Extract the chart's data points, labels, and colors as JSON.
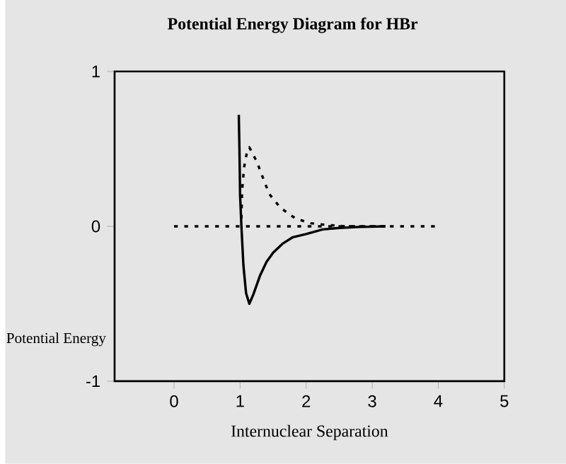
{
  "chart_data": {
    "type": "line",
    "title": "Potential Energy Diagram for HBr",
    "xlabel": "Internuclear Separation",
    "ylabel": "Potential Energy",
    "xlim": [
      -0.9,
      5
    ],
    "ylim": [
      -1,
      1
    ],
    "xticks": [
      0,
      1,
      2,
      3,
      4,
      5
    ],
    "yticks": [
      -1,
      0,
      1
    ],
    "grid": false,
    "marker": "none",
    "series": [
      {
        "color": "#000000",
        "line_style": "solid",
        "x": [
          0.98,
          0.99,
          1.0,
          1.02,
          1.05,
          1.09,
          1.14,
          1.2,
          1.3,
          1.4,
          1.5,
          1.65,
          1.8,
          2.0,
          2.25,
          2.5,
          2.8,
          3.2
        ],
        "values": [
          0.72,
          0.5,
          0.2,
          0.0,
          -0.25,
          -0.43,
          -0.5,
          -0.44,
          -0.32,
          -0.23,
          -0.17,
          -0.11,
          -0.07,
          -0.05,
          -0.02,
          -0.01,
          -0.004,
          0.0
        ]
      },
      {
        "color": "#000000",
        "line_style": "dotted",
        "x": [
          1.02,
          1.03,
          1.06,
          1.1,
          1.14,
          1.25,
          1.34,
          1.44,
          1.61,
          1.84,
          2.07,
          2.29,
          2.6,
          3.2
        ],
        "values": [
          0.05,
          0.23,
          0.38,
          0.47,
          0.51,
          0.42,
          0.32,
          0.21,
          0.12,
          0.05,
          0.02,
          0.01,
          0.0,
          0.0
        ]
      },
      {
        "color": "#000000",
        "line_style": "dotted",
        "x": [
          0,
          4
        ],
        "values": [
          0,
          0
        ]
      }
    ]
  }
}
